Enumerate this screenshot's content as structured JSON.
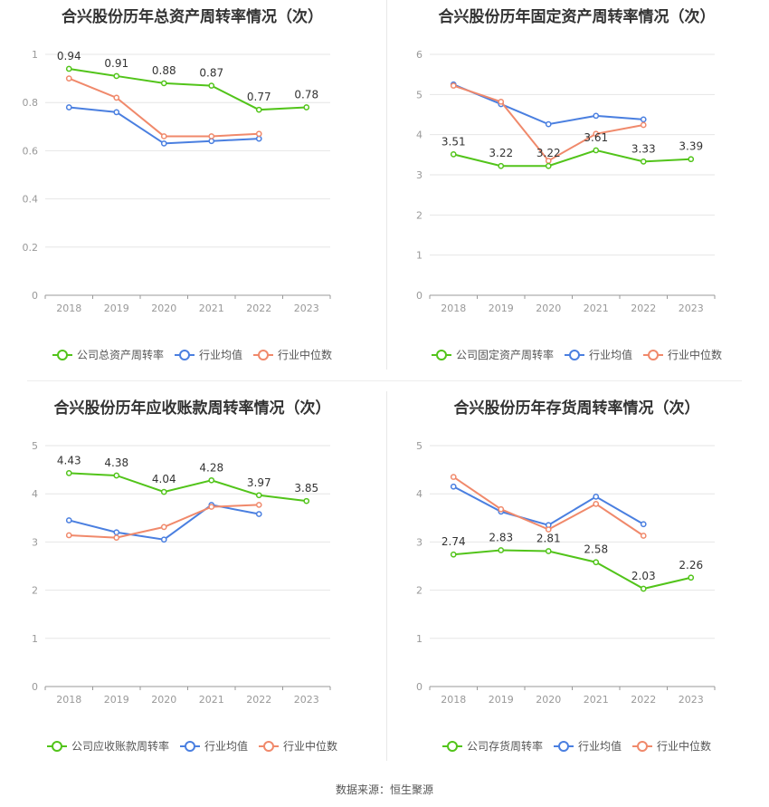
{
  "source_text": "数据来源：恒生聚源",
  "colors": {
    "company": "#52c41a",
    "industry_avg": "#4a7fe0",
    "industry_median": "#f0896b",
    "grid": "#e6e6e6",
    "axis": "#999999"
  },
  "chart_data": [
    {
      "type": "line",
      "title": "合兴股份历年总资产周转率情况（次）",
      "x": [
        "2018",
        "2019",
        "2020",
        "2021",
        "2022",
        "2023"
      ],
      "ylim": [
        0,
        1
      ],
      "yticks": [
        "0",
        "0.2",
        "0.4",
        "0.6",
        "0.8",
        "1"
      ],
      "series": [
        {
          "name": "公司总资产周转率",
          "values": [
            0.94,
            0.91,
            0.88,
            0.87,
            0.77,
            0.78
          ],
          "labels": [
            "0.94",
            "0.91",
            "0.88",
            "0.87",
            "0.77",
            "0.78"
          ]
        },
        {
          "name": "行业均值",
          "values": [
            0.78,
            0.76,
            0.63,
            0.64,
            0.65,
            null
          ]
        },
        {
          "name": "行业中位数",
          "values": [
            0.9,
            0.82,
            0.66,
            0.66,
            0.67,
            null
          ]
        }
      ]
    },
    {
      "type": "line",
      "title": "合兴股份历年固定资产周转率情况（次）",
      "x": [
        "2018",
        "2019",
        "2020",
        "2021",
        "2022",
        "2023"
      ],
      "ylim": [
        0,
        6
      ],
      "yticks": [
        "0",
        "1",
        "2",
        "3",
        "4",
        "5",
        "6"
      ],
      "series": [
        {
          "name": "公司固定资产周转率",
          "values": [
            3.51,
            3.22,
            3.22,
            3.61,
            3.33,
            3.39
          ],
          "labels": [
            "3.51",
            "3.22",
            "3.22",
            "3.61",
            "3.33",
            "3.39"
          ]
        },
        {
          "name": "行业均值",
          "values": [
            5.25,
            4.76,
            4.26,
            4.47,
            4.38,
            null
          ]
        },
        {
          "name": "行业中位数",
          "values": [
            5.22,
            4.82,
            3.35,
            4.02,
            4.24,
            null
          ]
        }
      ]
    },
    {
      "type": "line",
      "title": "合兴股份历年应收账款周转率情况（次）",
      "x": [
        "2018",
        "2019",
        "2020",
        "2021",
        "2022",
        "2023"
      ],
      "ylim": [
        0,
        5
      ],
      "yticks": [
        "0",
        "1",
        "2",
        "3",
        "4",
        "5"
      ],
      "series": [
        {
          "name": "公司应收账款周转率",
          "values": [
            4.43,
            4.38,
            4.04,
            4.28,
            3.97,
            3.85
          ],
          "labels": [
            "4.43",
            "4.38",
            "4.04",
            "4.28",
            "3.97",
            "3.85"
          ]
        },
        {
          "name": "行业均值",
          "values": [
            3.45,
            3.2,
            3.05,
            3.77,
            3.58,
            null
          ]
        },
        {
          "name": "行业中位数",
          "values": [
            3.14,
            3.09,
            3.31,
            3.73,
            3.77,
            null
          ]
        }
      ]
    },
    {
      "type": "line",
      "title": "合兴股份历年存货周转率情况（次）",
      "x": [
        "2018",
        "2019",
        "2020",
        "2021",
        "2022",
        "2023"
      ],
      "ylim": [
        0,
        5
      ],
      "yticks": [
        "0",
        "1",
        "2",
        "3",
        "4",
        "5"
      ],
      "series": [
        {
          "name": "公司存货周转率",
          "values": [
            2.74,
            2.83,
            2.81,
            2.58,
            2.03,
            2.26
          ],
          "labels": [
            "2.74",
            "2.83",
            "2.81",
            "2.58",
            "2.03",
            "2.26"
          ]
        },
        {
          "name": "行业均值",
          "values": [
            4.15,
            3.63,
            3.35,
            3.94,
            3.37,
            null
          ]
        },
        {
          "name": "行业中位数",
          "values": [
            4.35,
            3.68,
            3.26,
            3.79,
            3.13,
            null
          ]
        }
      ]
    }
  ]
}
